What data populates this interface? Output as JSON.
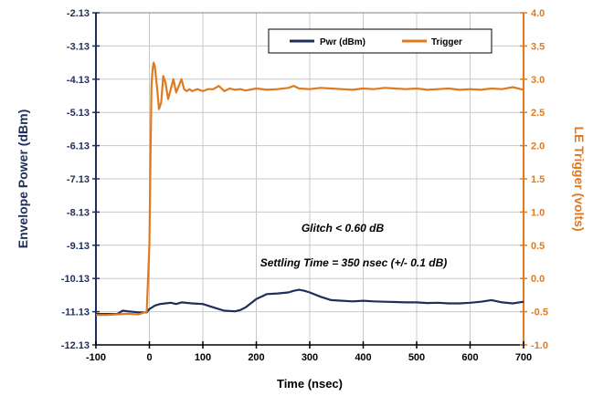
{
  "chart_data": {
    "type": "line",
    "xlabel": "Time (nsec)",
    "ylabel_left": "Envelope Power (dBm)",
    "ylabel_right": "LE Trigger (volts)",
    "xlim": [
      -100,
      700
    ],
    "x_ticks": [
      "-100",
      "0",
      "100",
      "200",
      "300",
      "400",
      "500",
      "600",
      "700"
    ],
    "ylim_left": [
      -12.13,
      -2.13
    ],
    "y_ticks_left": [
      "-2.13",
      "-3.13",
      "-4.13",
      "-5.13",
      "-6.13",
      "-7.13",
      "-8.13",
      "-9.13",
      "-10.13",
      "-11.13",
      "-12.13"
    ],
    "ylim_right": [
      -1.0,
      4.0
    ],
    "y_ticks_right": [
      "4.0",
      "3.5",
      "3.0",
      "2.5",
      "2.0",
      "1.5",
      "1.0",
      "0.5",
      "0.0",
      "-0.5",
      "-1.0"
    ],
    "colors": {
      "pwr": "#1f2f5c",
      "trigger": "#e07a1f"
    },
    "legend": [
      "Pwr (dBm)",
      "Trigger"
    ],
    "annotations": [
      "Glitch < 0.60 dB",
      "Settling Time = 350 nsec (+/- 0.1 dB)"
    ],
    "series": [
      {
        "name": "Pwr (dBm)",
        "axis": "left",
        "x": [
          -100,
          -80,
          -60,
          -50,
          -40,
          -20,
          -5,
          0,
          5,
          10,
          20,
          30,
          40,
          50,
          60,
          80,
          100,
          120,
          140,
          160,
          170,
          180,
          200,
          220,
          240,
          260,
          270,
          280,
          290,
          300,
          320,
          340,
          360,
          380,
          400,
          420,
          440,
          460,
          480,
          500,
          520,
          540,
          560,
          580,
          600,
          620,
          640,
          660,
          680,
          700
        ],
        "y": [
          -11.2,
          -11.2,
          -11.2,
          -11.1,
          -11.12,
          -11.15,
          -11.15,
          -11.05,
          -11.0,
          -10.95,
          -10.9,
          -10.88,
          -10.86,
          -10.9,
          -10.85,
          -10.88,
          -10.9,
          -11.0,
          -11.1,
          -11.12,
          -11.08,
          -11.0,
          -10.75,
          -10.6,
          -10.58,
          -10.55,
          -10.5,
          -10.47,
          -10.5,
          -10.55,
          -10.68,
          -10.78,
          -10.8,
          -10.82,
          -10.8,
          -10.82,
          -10.83,
          -10.84,
          -10.85,
          -10.85,
          -10.87,
          -10.86,
          -10.88,
          -10.88,
          -10.86,
          -10.83,
          -10.78,
          -10.85,
          -10.88,
          -10.83
        ]
      },
      {
        "name": "Trigger",
        "axis": "right",
        "x": [
          -100,
          -80,
          -60,
          -40,
          -20,
          -5,
          0,
          2,
          4,
          6,
          8,
          10,
          14,
          18,
          22,
          26,
          30,
          35,
          40,
          45,
          50,
          55,
          60,
          65,
          70,
          75,
          80,
          90,
          100,
          110,
          120,
          130,
          140,
          150,
          160,
          170,
          180,
          200,
          220,
          240,
          260,
          270,
          280,
          300,
          320,
          340,
          360,
          380,
          400,
          420,
          440,
          460,
          480,
          500,
          520,
          540,
          560,
          580,
          600,
          620,
          640,
          660,
          680,
          700
        ],
        "y": [
          -0.55,
          -0.55,
          -0.54,
          -0.53,
          -0.54,
          -0.5,
          0.5,
          1.8,
          2.9,
          3.15,
          3.25,
          3.2,
          2.9,
          2.55,
          2.65,
          3.05,
          2.95,
          2.7,
          2.85,
          3.0,
          2.8,
          2.9,
          3.0,
          2.85,
          2.82,
          2.85,
          2.82,
          2.85,
          2.82,
          2.85,
          2.85,
          2.9,
          2.82,
          2.86,
          2.84,
          2.85,
          2.83,
          2.86,
          2.84,
          2.85,
          2.87,
          2.9,
          2.86,
          2.85,
          2.87,
          2.86,
          2.85,
          2.84,
          2.86,
          2.85,
          2.87,
          2.86,
          2.85,
          2.86,
          2.84,
          2.85,
          2.86,
          2.84,
          2.85,
          2.84,
          2.86,
          2.85,
          2.88,
          2.84
        ]
      }
    ]
  }
}
